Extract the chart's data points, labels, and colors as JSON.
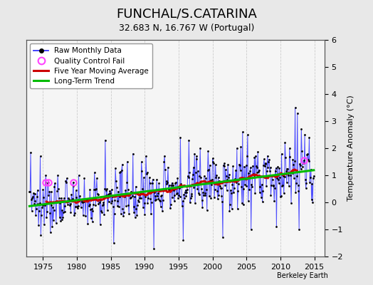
{
  "title": "FUNCHAL/S.CATARINA",
  "subtitle": "32.683 N, 16.767 W (Portugal)",
  "ylabel": "Temperature Anomaly (°C)",
  "credit": "Berkeley Earth",
  "ylim": [
    -2,
    6
  ],
  "yticks": [
    -2,
    -1,
    0,
    1,
    2,
    3,
    4,
    5,
    6
  ],
  "xlim": [
    1972.5,
    2016.5
  ],
  "xticks": [
    1975,
    1980,
    1985,
    1990,
    1995,
    2000,
    2005,
    2010,
    2015
  ],
  "fig_bg_color": "#e8e8e8",
  "plot_bg_color": "#f5f5f5",
  "grid_color": "#cccccc",
  "line_color_raw": "#3333ff",
  "line_color_moving_avg": "#cc0000",
  "line_color_trend": "#00bb00",
  "marker_color": "black",
  "qc_fail_color": "#ff44ff",
  "title_fontsize": 13,
  "subtitle_fontsize": 9,
  "axis_fontsize": 8,
  "ylabel_fontsize": 8
}
